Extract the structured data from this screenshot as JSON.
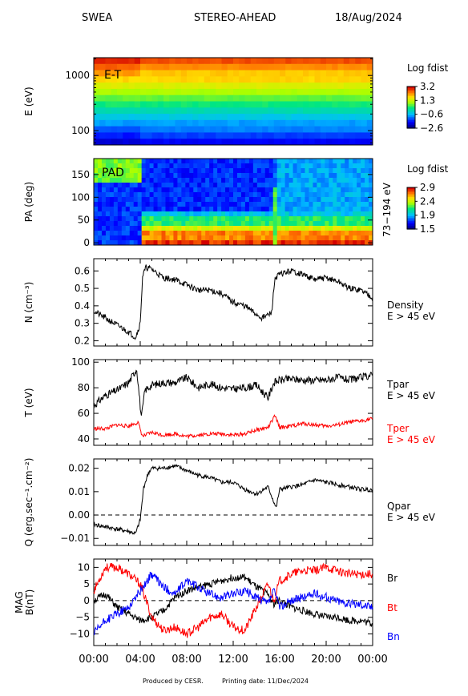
{
  "header": {
    "instrument": "SWEA",
    "mission": "STEREO-AHEAD",
    "date": "18/Aug/2024"
  },
  "footer": {
    "produced": "Produced by CESR.",
    "printing": "Printing date: 11/Dec/2024"
  },
  "colors": {
    "black": "#000000",
    "red": "#ff0000",
    "blue": "#0000ff",
    "dash": "#000000"
  },
  "time_axis": {
    "ticks": [
      "00:00",
      "04:00",
      "08:00",
      "12:00",
      "16:00",
      "20:00",
      "00:00"
    ],
    "hours": [
      0,
      4,
      8,
      12,
      16,
      20,
      24
    ]
  },
  "chart_data": [
    {
      "type": "heatmap",
      "panel": "E-T",
      "label": "E-T",
      "ylabel": "E (eV)",
      "yscale": "log",
      "yticks": [
        "1000",
        "100"
      ],
      "ytick_values": [
        1000,
        100
      ],
      "ylim": [
        55,
        2100
      ],
      "colorbar": {
        "title": "Log fdist",
        "ticks": [
          "3.2",
          "1.3",
          "−0.6",
          "−2.6"
        ],
        "range": [
          -2.6,
          3.2
        ]
      }
    },
    {
      "type": "heatmap",
      "panel": "PAD",
      "label": "PAD",
      "ylabel": "PA (deg)",
      "yticks": [
        "150",
        "100",
        "50",
        "0"
      ],
      "ytick_values": [
        150,
        100,
        50,
        0
      ],
      "ylim": [
        -5,
        185
      ],
      "right_label": "73−194 eV",
      "colorbar": {
        "title": "Log fdist",
        "ticks": [
          "2.9",
          "2.4",
          "1.9",
          "1.5"
        ],
        "range": [
          1.5,
          2.9
        ]
      }
    },
    {
      "type": "line",
      "panel": "density",
      "ylabel": "N (cm⁻³)",
      "yticks": [
        "0.6",
        "0.5",
        "0.4",
        "0.3",
        "0.2"
      ],
      "ytick_values": [
        0.6,
        0.5,
        0.4,
        0.3,
        0.2
      ],
      "ylim": [
        0.17,
        0.67
      ],
      "legend": [
        "Density",
        "E > 45 eV"
      ],
      "series": [
        {
          "name": "Density",
          "color": "#000000",
          "x": [
            0,
            1,
            2,
            3,
            3.6,
            4.0,
            4.2,
            4.5,
            5,
            6,
            7,
            8,
            9,
            10,
            11,
            12,
            13,
            13.8,
            14.5,
            15.3,
            15.6,
            16,
            17,
            18,
            19,
            20,
            21,
            22,
            23,
            24
          ],
          "y": [
            0.37,
            0.33,
            0.29,
            0.25,
            0.22,
            0.3,
            0.57,
            0.62,
            0.61,
            0.56,
            0.55,
            0.52,
            0.49,
            0.49,
            0.47,
            0.42,
            0.4,
            0.36,
            0.33,
            0.36,
            0.56,
            0.58,
            0.6,
            0.58,
            0.55,
            0.56,
            0.54,
            0.5,
            0.49,
            0.45
          ]
        }
      ]
    },
    {
      "type": "line",
      "panel": "temperature",
      "ylabel": "T (eV)",
      "yticks": [
        "100",
        "80",
        "60",
        "40"
      ],
      "ytick_values": [
        100,
        80,
        60,
        40
      ],
      "ylim": [
        35,
        102
      ],
      "series": [
        {
          "name": "Tpar",
          "label": [
            "Tpar",
            "E > 45 eV"
          ],
          "color": "#000000",
          "x": [
            0,
            1,
            2,
            3,
            3.7,
            4.1,
            4.4,
            5,
            6,
            7,
            8,
            9,
            10,
            11,
            12,
            13,
            14,
            15,
            15.5,
            16,
            17,
            18,
            19,
            20,
            21,
            22,
            23,
            24
          ],
          "y": [
            66,
            74,
            78,
            84,
            95,
            56,
            78,
            82,
            84,
            84,
            88,
            80,
            83,
            80,
            79,
            80,
            82,
            72,
            84,
            86,
            87,
            86,
            86,
            86,
            88,
            86,
            88,
            90
          ]
        },
        {
          "name": "Tper",
          "label": [
            "Tper",
            "E > 45 eV"
          ],
          "color": "#ff0000",
          "x": [
            0,
            1,
            2,
            3,
            3.8,
            4.2,
            5,
            6,
            7,
            8,
            9,
            10,
            11,
            12,
            13,
            14,
            15,
            15.6,
            16,
            17,
            18,
            19,
            20,
            21,
            22,
            23,
            24
          ],
          "y": [
            48,
            48,
            51,
            50,
            53,
            42,
            45,
            43,
            44,
            42,
            43,
            44,
            44,
            43,
            44,
            47,
            49,
            58,
            49,
            50,
            52,
            51,
            50,
            51,
            53,
            54,
            56
          ]
        }
      ]
    },
    {
      "type": "line",
      "panel": "heat-flux",
      "ylabel": "Q (erg.sec⁻¹.cm⁻²)",
      "yticks": [
        "0.02",
        "0.01",
        "0.00",
        "−0.01"
      ],
      "ytick_values": [
        0.02,
        0.01,
        0.0,
        -0.01
      ],
      "ylim": [
        -0.013,
        0.024
      ],
      "zero_line": 0,
      "legend": [
        "Qpar",
        "E > 45 eV"
      ],
      "series": [
        {
          "name": "Qpar",
          "color": "#000000",
          "x": [
            0,
            1,
            2,
            3,
            3.6,
            4.0,
            4.3,
            4.7,
            5,
            6,
            7,
            8,
            9,
            10,
            11,
            12,
            13,
            14,
            15,
            15.7,
            16,
            17,
            18,
            19,
            20,
            21,
            22,
            23,
            24
          ],
          "y": [
            -0.004,
            -0.005,
            -0.006,
            -0.007,
            -0.008,
            -0.002,
            0.012,
            0.018,
            0.02,
            0.02,
            0.021,
            0.019,
            0.017,
            0.016,
            0.014,
            0.014,
            0.011,
            0.009,
            0.012,
            0.003,
            0.011,
            0.012,
            0.013,
            0.015,
            0.014,
            0.013,
            0.012,
            0.011,
            0.011
          ]
        }
      ]
    },
    {
      "type": "line",
      "panel": "magnetic-field",
      "ylabel": [
        "MAG",
        "B(nT)"
      ],
      "yticks": [
        "10",
        "5",
        "0",
        "−5",
        "−10"
      ],
      "ytick_values": [
        10,
        5,
        0,
        -5,
        -10
      ],
      "ylim": [
        -13.5,
        12.5
      ],
      "zero_line": 0,
      "series": [
        {
          "name": "Br",
          "color": "#000000",
          "x": [
            0,
            1,
            2,
            3,
            4,
            5,
            6,
            7,
            8,
            9,
            10,
            11,
            12,
            13,
            14,
            15,
            15.5,
            16,
            17,
            18,
            19,
            20,
            21,
            22,
            23,
            24
          ],
          "y": [
            0,
            2,
            -2,
            -4,
            -6,
            -5,
            -3,
            1,
            3,
            4,
            5,
            6,
            7,
            7,
            4,
            2,
            -1,
            0,
            -2,
            -3,
            -4,
            -5,
            -5,
            -6,
            -6,
            -7
          ]
        },
        {
          "name": "Bt",
          "color": "#ff0000",
          "x": [
            0,
            1,
            2,
            3,
            4,
            5,
            6,
            7,
            8,
            9,
            10,
            11,
            12,
            13,
            14,
            15,
            15.5,
            16,
            17,
            18,
            19,
            20,
            21,
            22,
            23,
            24
          ],
          "y": [
            3,
            10,
            10,
            8,
            5,
            -5,
            -9,
            -8,
            -10,
            -8,
            -5,
            -4,
            -8,
            -9,
            -2,
            5,
            0,
            6,
            8,
            9,
            9,
            10,
            9,
            8,
            8,
            8
          ]
        },
        {
          "name": "Bn",
          "color": "#0000ff",
          "x": [
            0,
            1,
            2,
            3,
            4,
            5,
            6,
            7,
            8,
            9,
            10,
            11,
            12,
            13,
            14,
            15,
            15.5,
            16,
            17,
            18,
            19,
            20,
            21,
            22,
            23,
            24
          ],
          "y": [
            -10,
            -6,
            -4,
            -2,
            3,
            8,
            4,
            2,
            6,
            4,
            2,
            1,
            2,
            3,
            1,
            -1,
            3,
            -2,
            0,
            1,
            2,
            1,
            0,
            -1,
            -1,
            -2
          ]
        }
      ]
    }
  ]
}
